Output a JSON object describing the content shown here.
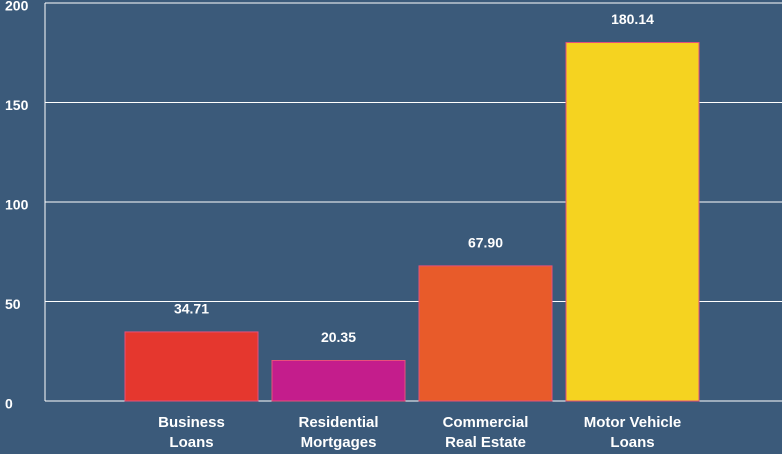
{
  "chart_data": {
    "type": "bar",
    "categories": [
      "Business\nLoans",
      "Residential\nMortgages",
      "Commercial\nReal Estate",
      "Motor Vehicle\nLoans"
    ],
    "values": [
      34.71,
      20.35,
      67.9,
      180.14
    ],
    "value_labels": [
      "34.71",
      "20.35",
      "67.90",
      "180.14"
    ],
    "colors": [
      "#e5372e",
      "#c41d8c",
      "#e85b2a",
      "#f5d320"
    ],
    "ylim": [
      0,
      200
    ],
    "yticks": [
      0,
      50,
      100,
      150,
      200
    ],
    "grid": true
  }
}
